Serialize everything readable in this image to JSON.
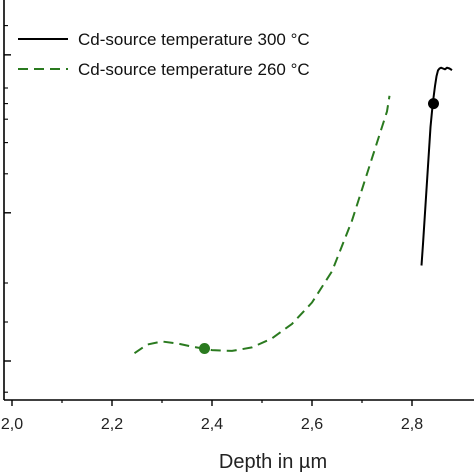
{
  "chart_data": {
    "type": "line",
    "xlabel": "Depth in µm",
    "ylabel": "",
    "xlim": [
      2.0,
      2.88
    ],
    "ylim": [
      0,
      1
    ],
    "x_ticks": [
      "2,0",
      "2,2",
      "2,4",
      "2,6",
      "2,8"
    ],
    "x_tick_values": [
      2.0,
      2.2,
      2.4,
      2.6,
      2.8
    ],
    "y_tick_values": [
      0.1,
      0.48,
      0.885,
      1.05
    ],
    "legend_position": "top-left",
    "grid": false,
    "series": [
      {
        "name": "Cd-source temperature 300 °C",
        "color": "#000000",
        "style": "solid",
        "x": [
          2.819,
          2.822,
          2.826,
          2.83,
          2.834,
          2.837,
          2.84,
          2.843,
          2.846,
          2.849,
          2.852,
          2.855,
          2.858,
          2.862,
          2.866,
          2.87,
          2.875,
          2.88
        ],
        "y": [
          0.345,
          0.4,
          0.48,
          0.56,
          0.64,
          0.7,
          0.74,
          0.775,
          0.805,
          0.83,
          0.845,
          0.85,
          0.852,
          0.85,
          0.848,
          0.852,
          0.85,
          0.846
        ],
        "marker": {
          "x": 2.843,
          "y": 0.76
        }
      },
      {
        "name": "Cd-source temperature 260 °C",
        "color": "#2a7a1f",
        "style": "dashed",
        "x": [
          2.245,
          2.27,
          2.3,
          2.33,
          2.36,
          2.4,
          2.44,
          2.48,
          2.52,
          2.56,
          2.6,
          2.64,
          2.68,
          2.7,
          2.72,
          2.73,
          2.74,
          2.75,
          2.755
        ],
        "y": [
          0.12,
          0.142,
          0.15,
          0.145,
          0.137,
          0.128,
          0.126,
          0.135,
          0.158,
          0.195,
          0.25,
          0.33,
          0.46,
          0.54,
          0.62,
          0.66,
          0.7,
          0.74,
          0.78
        ],
        "marker": {
          "x": 2.385,
          "y": 0.132
        }
      }
    ]
  }
}
